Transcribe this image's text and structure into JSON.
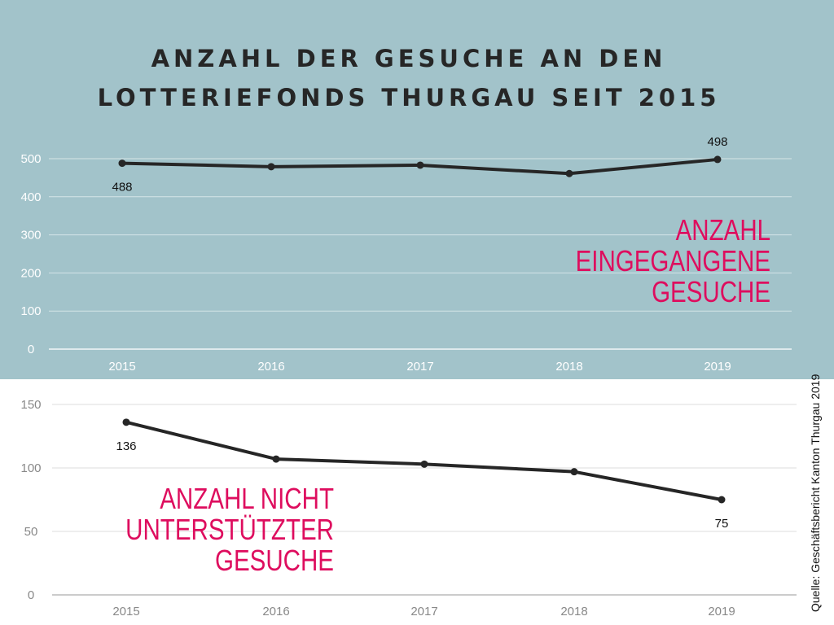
{
  "title": {
    "line1": "ANZAHL DER GESUCHE AN DEN",
    "line2": "LOTTERIEFONDS THURGAU SEIT 2015"
  },
  "source": "Quelle: Geschäftsbericht Kanton Thurgau 2019",
  "colors": {
    "top_background": "#a2c3ca",
    "accent": "#de0d5e",
    "line": "#262626"
  },
  "chart_data": [
    {
      "type": "line",
      "title": "ANZAHL EINGEGANGENE GESUCHE",
      "title_lines": [
        "ANZAHL",
        "EINGEGANGENE",
        "GESUCHE"
      ],
      "categories": [
        "2015",
        "2016",
        "2017",
        "2018",
        "2019"
      ],
      "series": [
        {
          "values": [
            488,
            479,
            483,
            461,
            498
          ]
        }
      ],
      "data_labels": [
        {
          "index": 0,
          "text": "488",
          "position": "below"
        },
        {
          "index": 4,
          "text": "498",
          "position": "above"
        }
      ],
      "yticks": [
        "0",
        "100",
        "200",
        "300",
        "400",
        "500"
      ],
      "ylim": [
        0,
        500
      ],
      "grid": true,
      "legend": "none"
    },
    {
      "type": "line",
      "title": "ANZAHL NICHT UNTERSTÜTZTER GESUCHE",
      "title_lines": [
        "ANZAHL NICHT",
        "UNTERSTÜTZTER",
        "GESUCHE"
      ],
      "categories": [
        "2015",
        "2016",
        "2017",
        "2018",
        "2019"
      ],
      "series": [
        {
          "values": [
            136,
            107,
            103,
            97,
            75
          ]
        }
      ],
      "data_labels": [
        {
          "index": 0,
          "text": "136",
          "position": "below"
        },
        {
          "index": 4,
          "text": "75",
          "position": "below"
        }
      ],
      "yticks": [
        "0",
        "50",
        "100",
        "150"
      ],
      "ylim": [
        0,
        150
      ],
      "grid": true,
      "legend": "none"
    }
  ]
}
